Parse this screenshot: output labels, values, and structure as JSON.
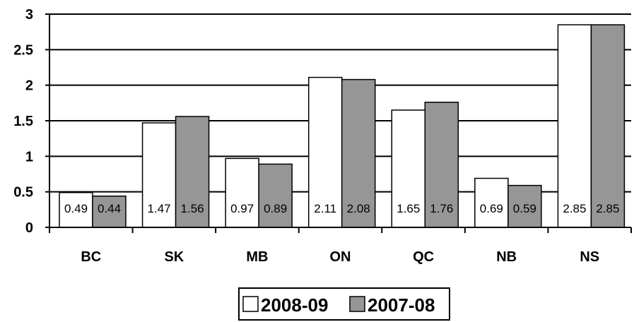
{
  "chart_data": {
    "type": "bar",
    "title": "",
    "xlabel": "",
    "ylabel": "",
    "categories": [
      "BC",
      "SK",
      "MB",
      "ON",
      "QC",
      "NB",
      "NS"
    ],
    "series": [
      {
        "name": "2008-09",
        "values": [
          0.49,
          1.47,
          0.97,
          2.11,
          1.65,
          0.69,
          2.85
        ],
        "color": "#ffffff"
      },
      {
        "name": "2007-08",
        "values": [
          0.44,
          1.56,
          0.89,
          2.08,
          1.76,
          0.59,
          2.85
        ],
        "color": "#969696"
      }
    ],
    "ylim": [
      0,
      3
    ],
    "yticks": [
      "0",
      "0.5",
      "1",
      "1.5",
      "2",
      "2.5",
      "3"
    ],
    "grid": true,
    "legend_position": "bottom",
    "data_labels": true
  }
}
